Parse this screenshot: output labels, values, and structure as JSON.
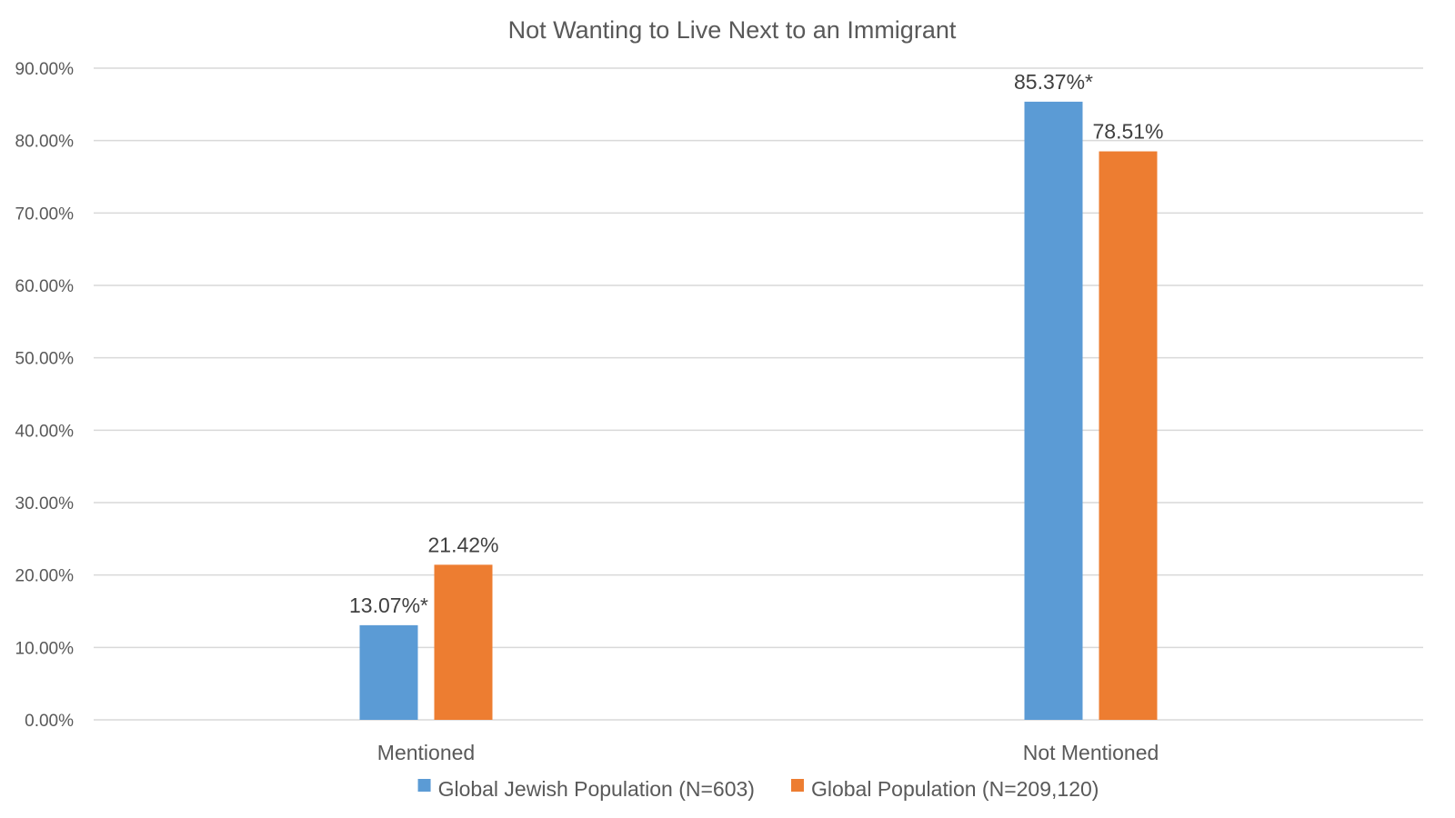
{
  "chart_data": {
    "type": "bar",
    "title": "Not Wanting to Live Next to an Immigrant",
    "categories": [
      "Mentioned",
      "Not Mentioned"
    ],
    "series": [
      {
        "name": "Global Jewish Population (N=603)",
        "color": "#5b9bd5",
        "values": [
          13.07,
          85.37
        ],
        "labels": [
          "13.07%*",
          "85.37%*"
        ]
      },
      {
        "name": "Global Population (N=209,120)",
        "color": "#ed7d31",
        "values": [
          21.42,
          78.51
        ],
        "labels": [
          "21.42%",
          "78.51%"
        ]
      }
    ],
    "ylim": [
      0,
      90
    ],
    "yticks": [
      0,
      10,
      20,
      30,
      40,
      50,
      60,
      70,
      80,
      90
    ],
    "ytick_labels": [
      "0.00%",
      "10.00%",
      "20.00%",
      "30.00%",
      "40.00%",
      "50.00%",
      "60.00%",
      "70.00%",
      "80.00%",
      "90.00%"
    ],
    "xlabel": "",
    "ylabel": "",
    "grid": true,
    "legend_position": "bottom"
  }
}
